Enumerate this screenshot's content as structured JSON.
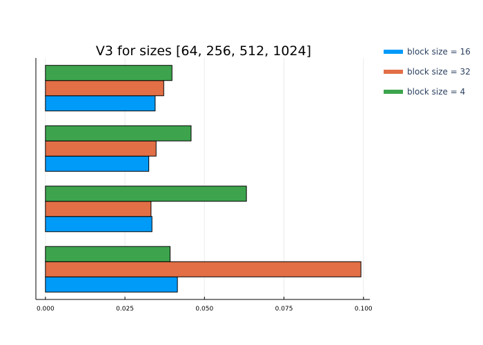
{
  "chart_data": {
    "type": "bar",
    "orientation": "horizontal",
    "title": "V3 for sizes [64, 256, 512, 1024]",
    "xlabel": "",
    "ylabel": "",
    "xlim": [
      -0.003,
      0.102
    ],
    "x_ticks": [
      0.0,
      0.025,
      0.05,
      0.075,
      0.1
    ],
    "x_tick_labels": [
      "0.000",
      "0.025",
      "0.050",
      "0.075",
      "0.100"
    ],
    "y_ticks_shown": false,
    "grid": true,
    "legend_position": "top-right outside",
    "groups": 4,
    "series": [
      {
        "name": "block size = 16",
        "color": "#009af9",
        "values": [
          0.0345,
          0.0325,
          0.0335,
          0.0415
        ]
      },
      {
        "name": "block size = 32",
        "color": "#e26f46",
        "values": [
          0.0372,
          0.0348,
          0.0332,
          0.0992
        ]
      },
      {
        "name": "block size = 4",
        "color": "#3da44d",
        "values": [
          0.0398,
          0.0458,
          0.0632,
          0.0392
        ]
      }
    ]
  }
}
